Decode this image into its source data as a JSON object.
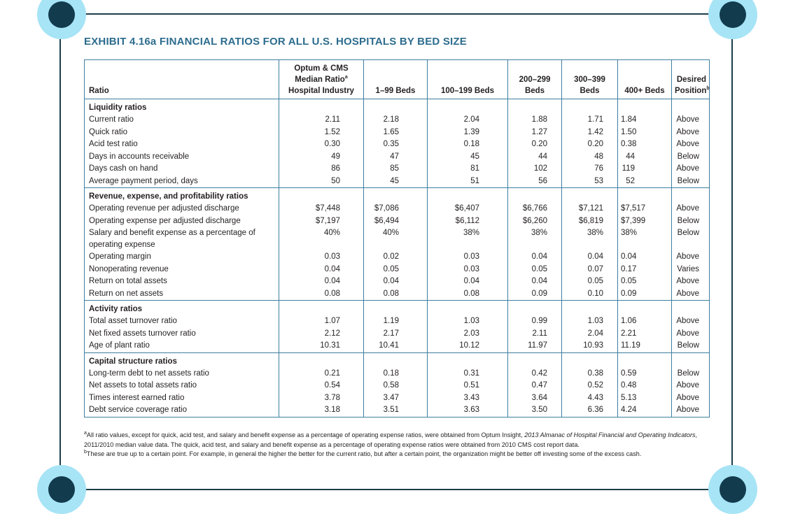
{
  "title": "EXHIBIT 4.16a  FINANCIAL RATIOS FOR ALL U.S. HOSPITALS BY BED SIZE",
  "columns": {
    "ratio": "Ratio",
    "median_l1": "Optum & CMS",
    "median_l2": "Median Ratio",
    "median_sup": "a",
    "median_l3": "Hospital Industry",
    "b1": "1–99 Beds",
    "b2": "100–199 Beds",
    "b3_l1": "200–299",
    "b3_l2": "Beds",
    "b4_l1": "300–399",
    "b4_l2": "Beds",
    "b5": "400+ Beds",
    "desired_l1": "Desired",
    "desired_l2": "Position",
    "desired_sup": "b"
  },
  "sections": [
    {
      "title": "Liquidity ratios",
      "rows": [
        {
          "name": "Current ratio",
          "v": [
            "2.11",
            "2.18",
            "2.04",
            "1.88",
            "1.71",
            "1.84",
            "Above"
          ]
        },
        {
          "name": "Quick ratio",
          "v": [
            "1.52",
            "1.65",
            "1.39",
            "1.27",
            "1.42",
            "1.50",
            "Above"
          ]
        },
        {
          "name": "Acid test ratio",
          "v": [
            "0.30",
            "0.35",
            "0.18",
            "0.20",
            "0.20",
            "0.38",
            "Above"
          ]
        },
        {
          "name": "Days in accounts receivable",
          "v": [
            "49",
            "47",
            "45",
            "44",
            "48",
            "44",
            "Below"
          ]
        },
        {
          "name": "Days cash on hand",
          "v": [
            "86",
            "85",
            "81",
            "102",
            "76",
            "119",
            "Above"
          ]
        },
        {
          "name": "Average payment period, days",
          "v": [
            "50",
            "45",
            "51",
            "56",
            "53",
            "52",
            "Below"
          ]
        }
      ]
    },
    {
      "title": "Revenue, expense, and profitability ratios",
      "rows": [
        {
          "name": "Operating revenue per adjusted discharge",
          "v": [
            "$7,448",
            "$7,086",
            "$6,407",
            "$6,766",
            "$7,121",
            "$7,517",
            "Above"
          ]
        },
        {
          "name": "Operating expense per adjusted discharge",
          "v": [
            "$7,197",
            "$6,494",
            "$6,112",
            "$6,260",
            "$6,819",
            "$7,399",
            "Below"
          ]
        },
        {
          "name": "Salary and benefit expense as a percentage of operating expense",
          "v": [
            "40%",
            "40%",
            "38%",
            "38%",
            "38%",
            "38%",
            "Below"
          ]
        },
        {
          "name": "Operating margin",
          "v": [
            "0.03",
            "0.02",
            "0.03",
            "0.04",
            "0.04",
            "0.04",
            "Above"
          ]
        },
        {
          "name": "Nonoperating revenue",
          "v": [
            "0.04",
            "0.05",
            "0.03",
            "0.05",
            "0.07",
            "0.17",
            "Varies"
          ]
        },
        {
          "name": "Return on total assets",
          "v": [
            "0.04",
            "0.04",
            "0.04",
            "0.04",
            "0.05",
            "0.05",
            "Above"
          ]
        },
        {
          "name": "Return on net assets",
          "v": [
            "0.08",
            "0.08",
            "0.08",
            "0.09",
            "0.10",
            "0.09",
            "Above"
          ]
        }
      ]
    },
    {
      "title": "Activity ratios",
      "rows": [
        {
          "name": "Total asset turnover ratio",
          "v": [
            "1.07",
            "1.19",
            "1.03",
            "0.99",
            "1.03",
            "1.06",
            "Above"
          ]
        },
        {
          "name": "Net fixed assets turnover ratio",
          "v": [
            "2.12",
            "2.17",
            "2.03",
            "2.11",
            "2.04",
            "2.21",
            "Above"
          ]
        },
        {
          "name": "Age of plant ratio",
          "v": [
            "10.31",
            "10.41",
            "10.12",
            "11.97",
            "10.93",
            "11.19",
            "Below"
          ]
        }
      ]
    },
    {
      "title": "Capital structure ratios",
      "rows": [
        {
          "name": "Long-term debt to net assets ratio",
          "v": [
            "0.21",
            "0.18",
            "0.31",
            "0.42",
            "0.38",
            "0.59",
            "Below"
          ]
        },
        {
          "name": "Net assets to total assets ratio",
          "v": [
            "0.54",
            "0.58",
            "0.51",
            "0.47",
            "0.52",
            "0.48",
            "Above"
          ]
        },
        {
          "name": "Times interest earned ratio",
          "v": [
            "3.78",
            "3.47",
            "3.43",
            "3.64",
            "4.43",
            "5.13",
            "Above"
          ]
        },
        {
          "name": "Debt service coverage ratio",
          "v": [
            "3.18",
            "3.51",
            "3.63",
            "3.50",
            "6.36",
            "4.24",
            "Above"
          ]
        }
      ]
    }
  ],
  "footnotes": {
    "a_mark": "a",
    "a_text1": "All ratio values, except for quick, acid test, and salary and benefit expense as a percentage of operating expense ratios, were obtained from Optum Insight, ",
    "a_italic": "2013 Almanac of Hospital Financial and Operating Indicators",
    "a_text2": ", 2011/2010 median value data. The quick, acid test, and salary and benefit expense as a percentage of operating expense ratios were obtained from 2010 CMS cost report data.",
    "b_mark": "b",
    "b_text": "These are true up to a certain point. For example, in general the higher the better for the current ratio, but after a certain point, the organization might be better off investing some of the excess cash."
  }
}
